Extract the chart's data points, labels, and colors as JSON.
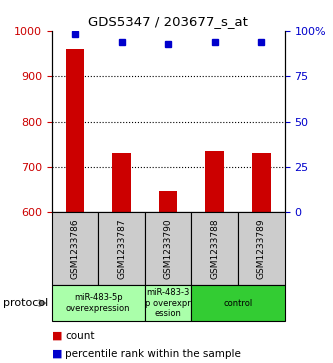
{
  "title": "GDS5347 / 203677_s_at",
  "samples": [
    "GSM1233786",
    "GSM1233787",
    "GSM1233790",
    "GSM1233788",
    "GSM1233789"
  ],
  "counts": [
    960,
    730,
    648,
    735,
    730
  ],
  "percentiles": [
    98,
    94,
    93,
    94,
    94
  ],
  "ylim_left": [
    600,
    1000
  ],
  "ylim_right": [
    0,
    100
  ],
  "yticks_left": [
    600,
    700,
    800,
    900,
    1000
  ],
  "yticks_right": [
    0,
    25,
    50,
    75,
    100
  ],
  "bar_color": "#cc0000",
  "dot_color": "#0000cc",
  "grid_color": "#000000",
  "groups": [
    {
      "label": "miR-483-5p\noverexpression",
      "indices": [
        0,
        1
      ],
      "color": "#aaffaa"
    },
    {
      "label": "miR-483-3\np overexpr\nession",
      "indices": [
        2
      ],
      "color": "#aaffaa"
    },
    {
      "label": "control",
      "indices": [
        3,
        4
      ],
      "color": "#33cc33"
    }
  ],
  "sample_box_color": "#cccccc",
  "legend_count_color": "#cc0000",
  "legend_pct_color": "#0000cc",
  "protocol_label": "protocol",
  "bar_width": 0.4
}
